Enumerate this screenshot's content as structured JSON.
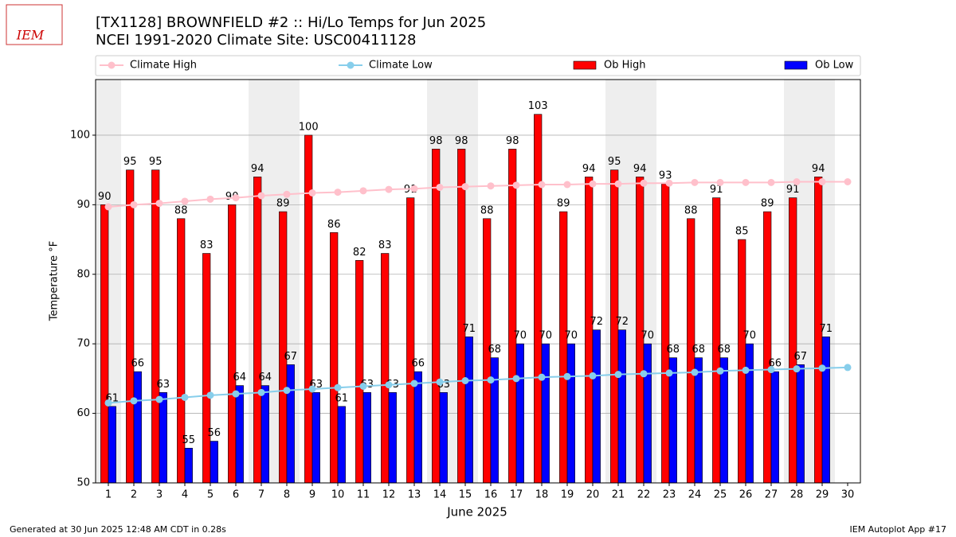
{
  "logo": "IEM",
  "footer_left": "Generated at 30 Jun 2025 12:48 AM CDT in 0.28s",
  "footer_right": "IEM Autoplot App #17",
  "chart_data": {
    "type": "bar",
    "title": "[TX1128] BROWNFIELD #2 :: Hi/Lo Temps for Jun 2025",
    "subtitle": "NCEI 1991-2020 Climate Site: USC00411128",
    "x_label": "June 2025",
    "y_label": "Temperature °F",
    "x": [
      1,
      2,
      3,
      4,
      5,
      6,
      7,
      8,
      9,
      10,
      11,
      12,
      13,
      14,
      15,
      16,
      17,
      18,
      19,
      20,
      21,
      22,
      23,
      24,
      25,
      26,
      27,
      28,
      29,
      30
    ],
    "xlim": [
      0.5,
      30.5
    ],
    "xticks": [
      1,
      2,
      3,
      4,
      5,
      6,
      7,
      8,
      9,
      10,
      11,
      12,
      13,
      14,
      15,
      16,
      17,
      18,
      19,
      20,
      21,
      22,
      23,
      24,
      25,
      26,
      27,
      28,
      29,
      30
    ],
    "ylim": [
      50,
      108
    ],
    "yticks": [
      50,
      60,
      70,
      80,
      90,
      100
    ],
    "grid": "y",
    "shaded_days": [
      1,
      7,
      8,
      14,
      15,
      21,
      22,
      28,
      29
    ],
    "shade_color": "#eeeeee",
    "series": [
      {
        "name": "Climate High",
        "type": "line",
        "color": "#ffc0cb",
        "values": [
          89.7,
          90.0,
          90.2,
          90.5,
          90.8,
          91.0,
          91.3,
          91.5,
          91.7,
          91.8,
          92.0,
          92.2,
          92.3,
          92.5,
          92.6,
          92.7,
          92.8,
          92.9,
          92.9,
          93.0,
          93.0,
          93.1,
          93.1,
          93.2,
          93.2,
          93.2,
          93.2,
          93.3,
          93.3,
          93.3
        ]
      },
      {
        "name": "Climate Low",
        "type": "line",
        "color": "#87ceeb",
        "values": [
          61.5,
          61.8,
          62.0,
          62.3,
          62.6,
          62.8,
          63.0,
          63.3,
          63.5,
          63.7,
          63.9,
          64.1,
          64.3,
          64.5,
          64.7,
          64.8,
          65.0,
          65.2,
          65.3,
          65.4,
          65.6,
          65.7,
          65.8,
          65.9,
          66.1,
          66.2,
          66.3,
          66.4,
          66.5,
          66.6
        ]
      },
      {
        "name": "Ob High",
        "type": "bar",
        "color": "#ff0000",
        "values": [
          90,
          95,
          95,
          88,
          83,
          90,
          94,
          89,
          100,
          86,
          82,
          83,
          91,
          98,
          98,
          88,
          98,
          103,
          89,
          94,
          95,
          94,
          93,
          88,
          91,
          85,
          89,
          91,
          94,
          null
        ]
      },
      {
        "name": "Ob Low",
        "type": "bar",
        "color": "#0000ff",
        "values": [
          61,
          66,
          63,
          55,
          56,
          64,
          64,
          67,
          63,
          61,
          63,
          63,
          66,
          63,
          71,
          68,
          70,
          70,
          70,
          72,
          72,
          70,
          68,
          68,
          68,
          70,
          66,
          67,
          71,
          null
        ]
      }
    ]
  }
}
